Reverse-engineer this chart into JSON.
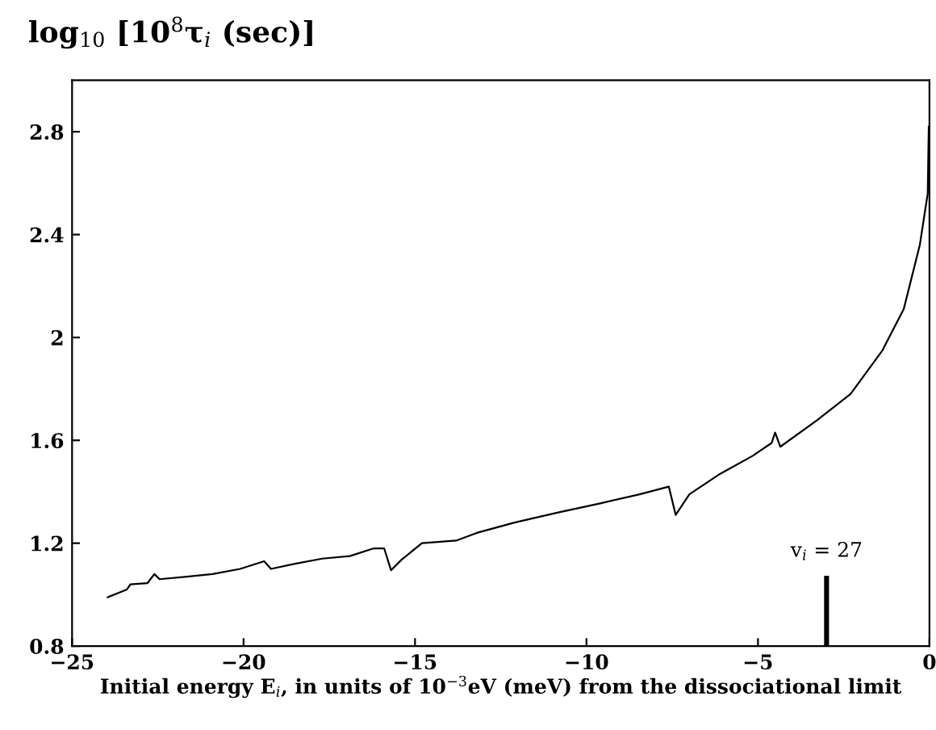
{
  "chart_data": {
    "type": "line",
    "ylabel": "log$_{10}$ [10$^{8}$τ$_{i}$ (sec)]",
    "xlabel": "Initial energy E$_{i}$, in units of 10$^{−3}$eV (meV) from the dissociational limit",
    "x": [
      -23.96,
      -23.4,
      -23.3,
      -22.8,
      -22.6,
      -22.45,
      -21.65,
      -20.9,
      -20.1,
      -19.4,
      -19.2,
      -18.5,
      -17.7,
      -16.9,
      -16.2,
      -15.9,
      -15.7,
      -15.4,
      -14.8,
      -13.8,
      -13.2,
      -12.1,
      -10.8,
      -9.6,
      -8.45,
      -7.6,
      -7.4,
      -7.0,
      -6.1,
      -5.15,
      -4.6,
      -4.5,
      -4.35,
      -3.26,
      -2.3,
      -1.37,
      -0.75,
      -0.28,
      -0.05,
      -0.02
    ],
    "series": [
      {
        "color": "#000000",
        "values": [
          0.99,
          1.02,
          1.04,
          1.045,
          1.08,
          1.06,
          1.07,
          1.08,
          1.1,
          1.13,
          1.1,
          1.12,
          1.14,
          1.15,
          1.18,
          1.18,
          1.095,
          1.135,
          1.2,
          1.21,
          1.24,
          1.28,
          1.32,
          1.355,
          1.39,
          1.42,
          1.31,
          1.39,
          1.47,
          1.54,
          1.59,
          1.63,
          1.575,
          1.68,
          1.78,
          1.95,
          2.11,
          2.36,
          2.56,
          2.82
        ]
      }
    ],
    "xlim": [
      -25,
      0
    ],
    "ylim": [
      0.8,
      3.0
    ],
    "xticks": [
      {
        "value": -25,
        "label": "−25"
      },
      {
        "value": -20,
        "label": "−20"
      },
      {
        "value": -15,
        "label": "−15"
      },
      {
        "value": -10,
        "label": "−10"
      },
      {
        "value": -5,
        "label": "−5"
      },
      0
    ],
    "yticks": [
      0.8,
      1.2,
      1.6,
      2,
      2.4,
      2.8
    ],
    "ref_lines": [
      {
        "axis": "x",
        "value": -3,
        "color": "#000000",
        "line_style": "solid"
      }
    ],
    "annotations": [
      "v$_{i}$ = 27"
    ],
    "marker": "none",
    "line_style": "solid",
    "grid": false,
    "legend": false
  }
}
